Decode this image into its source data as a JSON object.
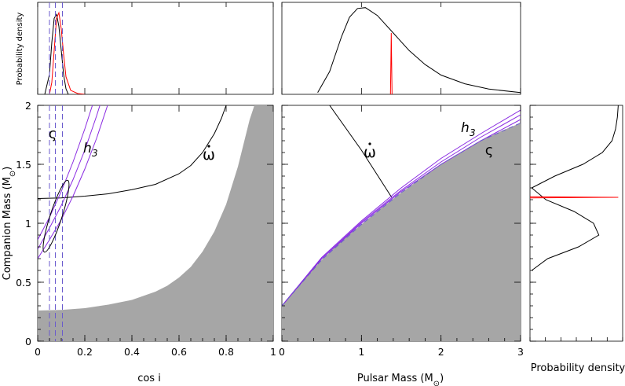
{
  "colors": {
    "excluded": "#a6a6a6",
    "h3": "#8a2be2",
    "zeta": "#8a2be2",
    "zeta_lines": "#6a5acd",
    "omdot": "#000000",
    "density_main": "#000000",
    "density_red": "#ff0000",
    "annotation": "#800080"
  },
  "chart_data": [
    {
      "id": "cosi-m2",
      "type": "line",
      "xlabel": "cos i",
      "ylabel": "Companion Mass (M",
      "ylabel_sub": "⊙",
      "ylabel_tail": ")",
      "xlim": [
        0,
        1
      ],
      "ylim": [
        0,
        2
      ],
      "xticks": [
        0,
        0.2,
        0.4,
        0.6,
        0.8,
        1
      ],
      "xtick_labels": [
        "0",
        "0.2",
        "0.4",
        "0.6",
        "0.8",
        "1"
      ],
      "yticks": [
        0,
        0.5,
        1,
        1.5,
        2
      ],
      "ytick_labels": [
        "0",
        "0.5",
        "1",
        "1.5",
        "2"
      ],
      "excluded_boundary": {
        "x": [
          0,
          0.1,
          0.2,
          0.3,
          0.4,
          0.5,
          0.55,
          0.6,
          0.65,
          0.7,
          0.75,
          0.8,
          0.85,
          0.88,
          0.9,
          0.92,
          0.94,
          0.95
        ],
        "y": [
          0.26,
          0.265,
          0.28,
          0.31,
          0.35,
          0.42,
          0.47,
          0.54,
          0.63,
          0.76,
          0.93,
          1.16,
          1.48,
          1.72,
          1.88,
          2.0,
          2.0,
          2.0
        ]
      },
      "series": [
        {
          "key": "omdot",
          "x": [
            0,
            0.1,
            0.2,
            0.3,
            0.4,
            0.5,
            0.6,
            0.65,
            0.7,
            0.75,
            0.78,
            0.8
          ],
          "y": [
            1.21,
            1.215,
            1.23,
            1.25,
            1.285,
            1.33,
            1.42,
            1.49,
            1.6,
            1.76,
            1.89,
            2.0
          ]
        },
        {
          "key": "h3",
          "x": [
            0,
            0.05,
            0.1,
            0.15,
            0.2,
            0.25,
            0.3,
            0.35
          ],
          "y": [
            0.7,
            0.86,
            1.03,
            1.23,
            1.46,
            1.72,
            2.02,
            2.35
          ]
        },
        {
          "key": "h3",
          "x": [
            0,
            0.05,
            0.1,
            0.15,
            0.2,
            0.25,
            0.3
          ],
          "y": [
            0.78,
            0.96,
            1.15,
            1.37,
            1.62,
            1.91,
            2.23
          ]
        },
        {
          "key": "h3",
          "x": [
            0,
            0.05,
            0.1,
            0.15,
            0.2,
            0.25,
            0.28
          ],
          "y": [
            0.86,
            1.05,
            1.27,
            1.52,
            1.8,
            2.11,
            2.3
          ]
        }
      ],
      "zeta_x": [
        0.05,
        0.075,
        0.105
      ],
      "ellipse": {
        "cx": 0.078,
        "cy": 1.06,
        "rx": 0.025,
        "ry": 0.32,
        "rot": -0.06
      },
      "labels": {
        "zeta": "ς",
        "h3": "h",
        "h3_sub": "3",
        "omdot": "ω"
      }
    },
    {
      "id": "mp-m2",
      "type": "line",
      "xlabel": "Pulsar Mass (M",
      "xlabel_sub": "⊙",
      "xlabel_tail": ")",
      "xlim": [
        0,
        3
      ],
      "ylim": [
        0,
        2
      ],
      "xticks": [
        0,
        1,
        2,
        3
      ],
      "xtick_labels": [
        "0",
        "1",
        "2",
        "3"
      ],
      "excluded_boundary": {
        "x": [
          0,
          0.1,
          0.25,
          0.5,
          0.75,
          1,
          1.25,
          1.5,
          1.75,
          2,
          2.25,
          2.5,
          2.75,
          3
        ],
        "y": [
          0.3,
          0.38,
          0.5,
          0.69,
          0.85,
          0.99,
          1.13,
          1.26,
          1.38,
          1.5,
          1.6,
          1.7,
          1.78,
          1.85
        ]
      },
      "series": [
        {
          "key": "omdot",
          "x": [
            0.6,
            1.0,
            1.38
          ],
          "y": [
            2.0,
            1.62,
            1.22
          ]
        },
        {
          "key": "h3",
          "x": [
            0,
            0.5,
            1,
            1.5,
            2,
            2.5,
            3
          ],
          "y": [
            0.3,
            0.71,
            1.02,
            1.3,
            1.55,
            1.76,
            1.96
          ]
        },
        {
          "key": "h3",
          "x": [
            0,
            0.5,
            1,
            1.5,
            2,
            2.5,
            3
          ],
          "y": [
            0.3,
            0.7,
            1.01,
            1.28,
            1.52,
            1.73,
            1.92
          ]
        },
        {
          "key": "h3",
          "x": [
            0,
            0.5,
            1,
            1.5,
            2,
            2.5,
            3
          ],
          "y": [
            0.3,
            0.7,
            1.0,
            1.27,
            1.5,
            1.7,
            1.88
          ]
        }
      ],
      "zeta_boundary": {
        "x": [
          0,
          0.5,
          1,
          1.5,
          2,
          2.5,
          3
        ],
        "y": [
          0.3,
          0.69,
          0.99,
          1.26,
          1.5,
          1.7,
          1.85
        ]
      },
      "labels": {
        "zeta": "ς",
        "h3": "h",
        "h3_sub": "3",
        "omdot": "ω"
      }
    },
    {
      "id": "cosi-pdf",
      "type": "line",
      "ylabel": "Probability density",
      "xlim": [
        0,
        1
      ],
      "series": [
        {
          "key": "main",
          "x": [
            0.03,
            0.05,
            0.06,
            0.07,
            0.08,
            0.09,
            0.1,
            0.11,
            0.12,
            0.13
          ],
          "y": [
            0,
            0.25,
            0.65,
            0.95,
            1.0,
            0.85,
            0.55,
            0.25,
            0.07,
            0.0
          ]
        },
        {
          "key": "red",
          "x": [
            0.05,
            0.06,
            0.07,
            0.08,
            0.09,
            0.1,
            0.11,
            0.12,
            0.14,
            0.17,
            0.2
          ],
          "y": [
            0,
            0.15,
            0.55,
            0.95,
            1.02,
            0.82,
            0.5,
            0.22,
            0.05,
            0.01,
            0
          ]
        }
      ],
      "zeta_x": [
        0.05,
        0.075,
        0.105
      ]
    },
    {
      "id": "mp-pdf",
      "type": "line",
      "xlim": [
        0,
        3
      ],
      "series": [
        {
          "key": "main",
          "x": [
            0.45,
            0.6,
            0.75,
            0.85,
            0.95,
            1.05,
            1.2,
            1.4,
            1.6,
            1.8,
            2.0,
            2.3,
            2.6,
            3.0
          ],
          "y": [
            0.02,
            0.26,
            0.66,
            0.88,
            0.98,
            0.99,
            0.9,
            0.7,
            0.5,
            0.34,
            0.22,
            0.12,
            0.06,
            0.02
          ]
        },
        {
          "key": "red",
          "x": [
            1.365,
            1.375,
            1.385
          ],
          "y": [
            0.0,
            0.7,
            0.0
          ]
        }
      ]
    },
    {
      "id": "m2-pdf",
      "type": "line",
      "xlabel": "Probability density",
      "ylim": [
        0,
        2
      ],
      "series": [
        {
          "key": "main",
          "y": [
            0.6,
            0.7,
            0.8,
            0.9,
            1.0,
            1.1,
            1.2,
            1.3,
            1.4,
            1.5,
            1.6,
            1.7,
            1.8,
            1.9,
            2.0
          ],
          "x": [
            0.02,
            0.2,
            0.55,
            0.78,
            0.72,
            0.5,
            0.18,
            0.02,
            0.28,
            0.6,
            0.82,
            0.93,
            0.97,
            0.99,
            1.0
          ]
        },
        {
          "key": "red",
          "y": [
            1.215,
            1.22,
            1.225
          ],
          "x": [
            0.0,
            1.0,
            0.0
          ]
        }
      ]
    }
  ]
}
